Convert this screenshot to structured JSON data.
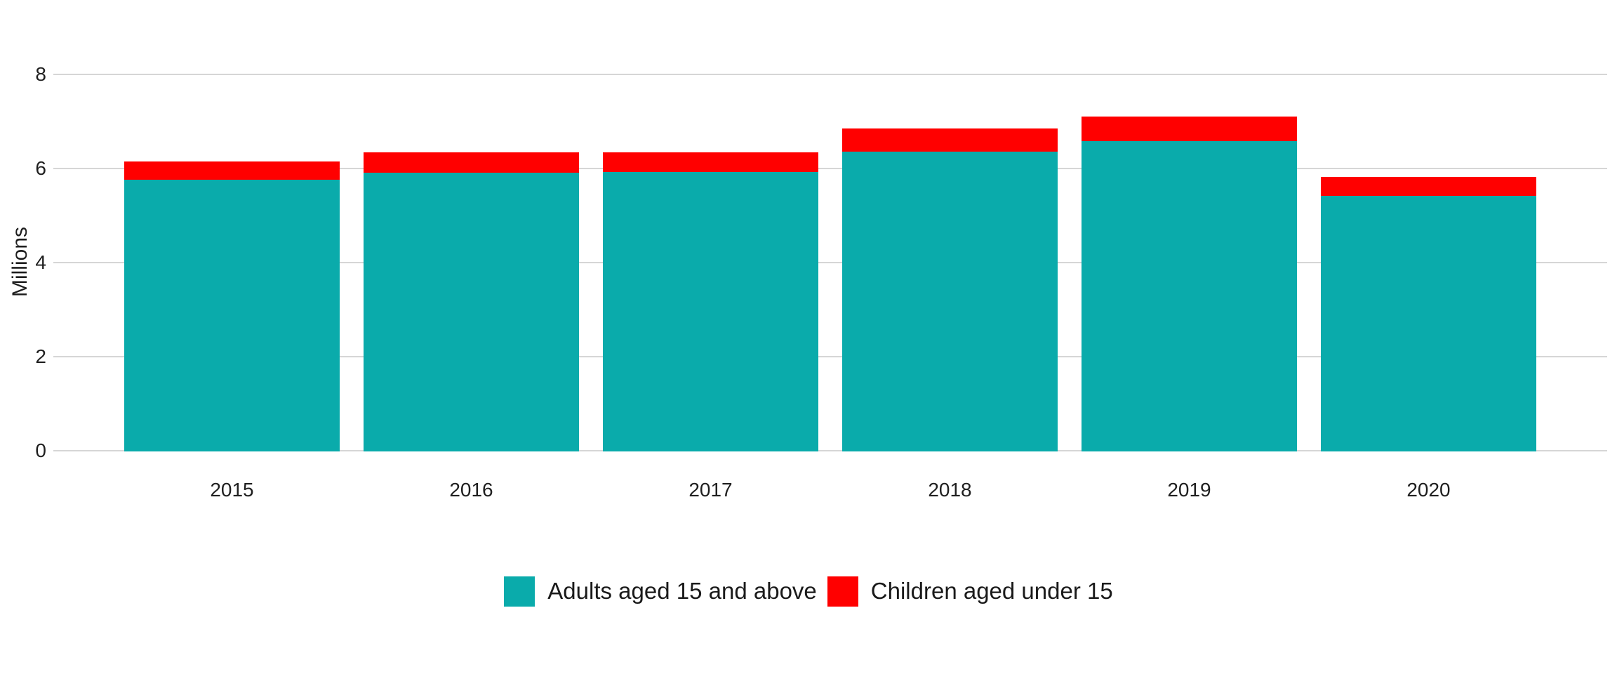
{
  "chart_data": {
    "type": "bar",
    "stacked": true,
    "categories": [
      "2015",
      "2016",
      "2017",
      "2018",
      "2019",
      "2020"
    ],
    "series": [
      {
        "name": "Adults aged 15 and above",
        "color": "#0AABAB",
        "values": [
          5.78,
          5.92,
          5.94,
          6.38,
          6.59,
          5.43
        ]
      },
      {
        "name": "Children aged under 15",
        "color": "#FF0000",
        "values": [
          0.39,
          0.44,
          0.42,
          0.49,
          0.52,
          0.41
        ]
      }
    ],
    "ylabel": "Millions",
    "xlabel": "",
    "yticks": [
      0,
      2,
      4,
      6,
      8
    ],
    "ylim": [
      0,
      8
    ],
    "grid": true,
    "legend_position": "bottom",
    "colors": {
      "gridline": "#D6D6D6",
      "axis_text": "#1F1F1F"
    }
  }
}
